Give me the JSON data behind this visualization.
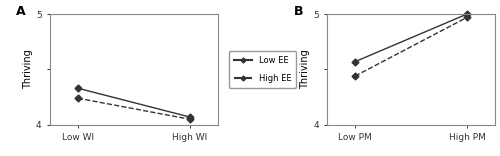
{
  "panel_A": {
    "label": "A",
    "xlabel_ticks": [
      "Low WI",
      "High WI"
    ],
    "ylabel": "Thriving",
    "ylim": [
      4.0,
      5.0
    ],
    "yticks": [
      4.0,
      4.5,
      5.0
    ],
    "ytick_labels": [
      "4",
      "",
      "5"
    ],
    "low_ee": [
      4.33,
      4.07
    ],
    "high_ee": [
      4.24,
      4.05
    ]
  },
  "panel_B": {
    "label": "B",
    "xlabel_ticks": [
      "Low PM",
      "High PM"
    ],
    "ylabel": "Thriving",
    "ylim": [
      4.0,
      5.0
    ],
    "yticks": [
      4.0,
      4.5,
      5.0
    ],
    "ytick_labels": [
      "4",
      "",
      "5"
    ],
    "low_ee": [
      4.57,
      5.0
    ],
    "high_ee": [
      4.44,
      4.97
    ]
  },
  "legend_labels": [
    "Low EE",
    "High EE"
  ],
  "marker": "D",
  "markersize": 3.5,
  "fontsize_label": 7,
  "fontsize_tick": 6.5,
  "fontsize_panel": 9,
  "fontsize_legend": 6,
  "background_color": "#ffffff",
  "line_color": "#333333",
  "linewidth": 1.0
}
